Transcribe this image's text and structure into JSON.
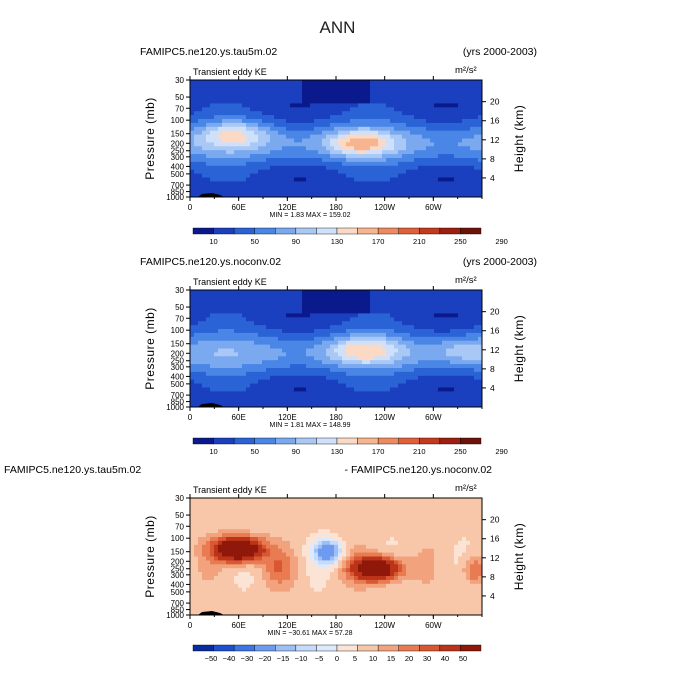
{
  "page": {
    "title": "ANN"
  },
  "colors": {
    "seq": [
      "#0a1a8c",
      "#1a3fbf",
      "#2a63d6",
      "#4a86e6",
      "#7aa9ef",
      "#a9c8f5",
      "#cfe0fa",
      "#fbd9c4",
      "#f6b58f",
      "#ee8a5e",
      "#e0603a",
      "#c43a1f",
      "#9c1f10",
      "#6e1108"
    ],
    "div": [
      "#0a2aa0",
      "#1e4fd0",
      "#3d75e5",
      "#6d9bf0",
      "#9ebef6",
      "#c6dafb",
      "#dde9fd",
      "#fbe4d6",
      "#f8c7aa",
      "#f2a27c",
      "#e97b52",
      "#d95733",
      "#bb3419",
      "#8f180a"
    ]
  },
  "chart_data": [
    {
      "type": "heatmap",
      "panel": "top",
      "case_label": "FAMIPC5.ne120.ys.tau5m.02",
      "years": "(yrs 2000-2003)",
      "variable": "Transient eddy KE",
      "units": "m²/s²",
      "min_max": "MIN =     1.83   MAX = 159.02",
      "min": 1.83,
      "max": 159.02,
      "xlabel": "",
      "ylabel": "Pressure (mb)",
      "ylabel_right": "Height (km)",
      "xticks": [
        "0",
        "60E",
        "120E",
        "180",
        "120W",
        "60W"
      ],
      "xlim": [
        0,
        360
      ],
      "yticks": [
        "30",
        "50",
        "70",
        "100",
        "150",
        "200",
        "250",
        "300",
        "400",
        "500",
        "700",
        "850",
        "1000"
      ],
      "ylim": [
        1000,
        30
      ],
      "yticks_right": [
        "20",
        "16",
        "12",
        "8",
        "4"
      ],
      "colorbar_labels": [
        "10",
        "50",
        "90",
        "130",
        "170",
        "210",
        "250",
        "290"
      ],
      "levels": [
        10,
        30,
        50,
        70,
        90,
        110,
        130,
        150,
        170,
        190,
        210,
        230,
        250,
        270,
        290
      ],
      "features": [
        {
          "lon": 55,
          "p": 150,
          "value": 140
        },
        {
          "lon": 210,
          "p": 200,
          "value": 159
        }
      ]
    },
    {
      "type": "heatmap",
      "panel": "middle",
      "case_label": "FAMIPC5.ne120.ys.noconv.02",
      "years": "(yrs 2000-2003)",
      "variable": "Transient eddy KE",
      "units": "m²/s²",
      "min_max": "MIN =     1.81   MAX = 148.99",
      "min": 1.81,
      "max": 148.99,
      "xlabel": "",
      "ylabel": "Pressure (mb)",
      "ylabel_right": "Height (km)",
      "xticks": [
        "0",
        "60E",
        "120E",
        "180",
        "120W",
        "60W"
      ],
      "xlim": [
        0,
        360
      ],
      "yticks": [
        "30",
        "50",
        "70",
        "100",
        "150",
        "200",
        "250",
        "300",
        "400",
        "500",
        "700",
        "850",
        "1000"
      ],
      "ylim": [
        1000,
        30
      ],
      "yticks_right": [
        "20",
        "16",
        "12",
        "8",
        "4"
      ],
      "colorbar_labels": [
        "10",
        "50",
        "90",
        "130",
        "170",
        "210",
        "250",
        "290"
      ],
      "levels": [
        10,
        30,
        50,
        70,
        90,
        110,
        130,
        150,
        170,
        190,
        210,
        230,
        250,
        270,
        290
      ],
      "features": [
        {
          "lon": 215,
          "p": 180,
          "value": 149
        },
        {
          "lon": 340,
          "p": 180,
          "value": 115
        }
      ]
    },
    {
      "type": "heatmap",
      "panel": "bottom",
      "case_label": "FAMIPC5.ne120.ys.tau5m.02",
      "case_label_right": "- FAMIPC5.ne120.ys.noconv.02",
      "variable": "Transient eddy KE",
      "units": "m²/s²",
      "min_max": "MIN = −30.61   MAX =   57.28",
      "min": -30.61,
      "max": 57.28,
      "xlabel": "",
      "ylabel": "Pressure (mb)",
      "ylabel_right": "Height (km)",
      "xticks": [
        "0",
        "60E",
        "120E",
        "180",
        "120W",
        "60W"
      ],
      "xlim": [
        0,
        360
      ],
      "yticks": [
        "30",
        "50",
        "70",
        "100",
        "150",
        "200",
        "250",
        "300",
        "400",
        "500",
        "700",
        "850",
        "1000"
      ],
      "ylim": [
        1000,
        30
      ],
      "yticks_right": [
        "20",
        "16",
        "12",
        "8",
        "4"
      ],
      "colorbar_labels": [
        "−50",
        "−40",
        "−30",
        "−20",
        "−15",
        "−10",
        "−5",
        "0",
        "5",
        "10",
        "15",
        "20",
        "30",
        "40",
        "50"
      ],
      "levels": [
        -50,
        -40,
        -30,
        -20,
        -15,
        -10,
        -5,
        0,
        5,
        10,
        15,
        20,
        30,
        40,
        50
      ],
      "features": [
        {
          "lon": 60,
          "p": 140,
          "value": 57
        },
        {
          "lon": 230,
          "p": 250,
          "value": 50
        },
        {
          "lon": 170,
          "p": 150,
          "value": -30
        }
      ]
    }
  ]
}
